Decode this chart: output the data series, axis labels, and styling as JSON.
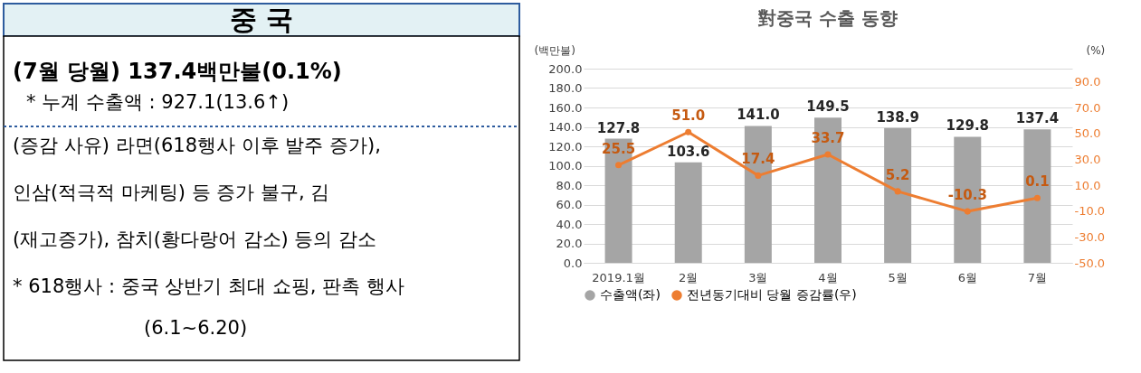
{
  "chart_data": [
    {
      "type": "other",
      "title": "중 국",
      "annotations": [
        "(7월 당월) 137.4백만불(0.1%)",
        "* 누계 수출액 : 927.1(13.6↑)",
        "(증감 사유) 라면(618행사 이후 발주 증가),",
        "인삼(적극적 마케팅) 등 증가 불구, 김",
        "(재고증가), 참치(황다랑어 감소) 등의 감소",
        "* 618행사 : 중국 상반기 최대 쇼핑, 판촉 행사",
        "(6.1~6.20)"
      ]
    },
    {
      "type": "bar",
      "title": "對중국 수출 동향",
      "ylabel": "(백만불)",
      "y2label": "(%)",
      "categories": [
        "2019.1월",
        "2월",
        "3월",
        "4월",
        "5월",
        "6월",
        "7월"
      ],
      "series": [
        {
          "name": "수출액(좌)",
          "color": "#a5a5a5",
          "values": [
            127.8,
            103.6,
            141.0,
            149.5,
            138.9,
            129.8,
            137.4
          ],
          "value_labels": [
            "127.8",
            "103.6",
            "141.0",
            "149.5",
            "138.9",
            "129.8",
            "137.4"
          ]
        },
        {
          "name": "전년동기대비 당월 증감률(우)",
          "type": "line",
          "axis": "y2",
          "color": "#ed7d31",
          "values": [
            25.5,
            51.0,
            17.4,
            33.7,
            5.2,
            -10.3,
            0.1
          ],
          "value_labels": [
            "25.5",
            "51.0",
            "17.4",
            "33.7",
            "5.2",
            "-10.3",
            "0.1"
          ]
        }
      ],
      "ylim": [
        0,
        200
      ],
      "yticks": [
        {
          "value": 0,
          "label": "0.0"
        },
        {
          "value": 20,
          "label": "20.0"
        },
        {
          "value": 40,
          "label": "40.0"
        },
        {
          "value": 60,
          "label": "60.0"
        },
        {
          "value": 80,
          "label": "80.0"
        },
        {
          "value": 100,
          "label": "100.0"
        },
        {
          "value": 120,
          "label": "120.0"
        },
        {
          "value": 140,
          "label": "140.0"
        },
        {
          "value": 160,
          "label": "160.0"
        },
        {
          "value": 180,
          "label": "180.0"
        },
        {
          "value": 200,
          "label": "200.0"
        }
      ],
      "y2lim": [
        -50,
        100
      ],
      "y2ticks": [
        {
          "value": -50,
          "label": "-50.0"
        },
        {
          "value": -30,
          "label": "-30.0"
        },
        {
          "value": -10,
          "label": "-10.0"
        },
        {
          "value": 10,
          "label": "10.0"
        },
        {
          "value": 30,
          "label": "30.0"
        },
        {
          "value": 50,
          "label": "50.0"
        },
        {
          "value": 70,
          "label": "70.0"
        },
        {
          "value": 90,
          "label": "90.0"
        }
      ],
      "grid": "y",
      "legend": "bottom",
      "marker": "circle"
    }
  ]
}
